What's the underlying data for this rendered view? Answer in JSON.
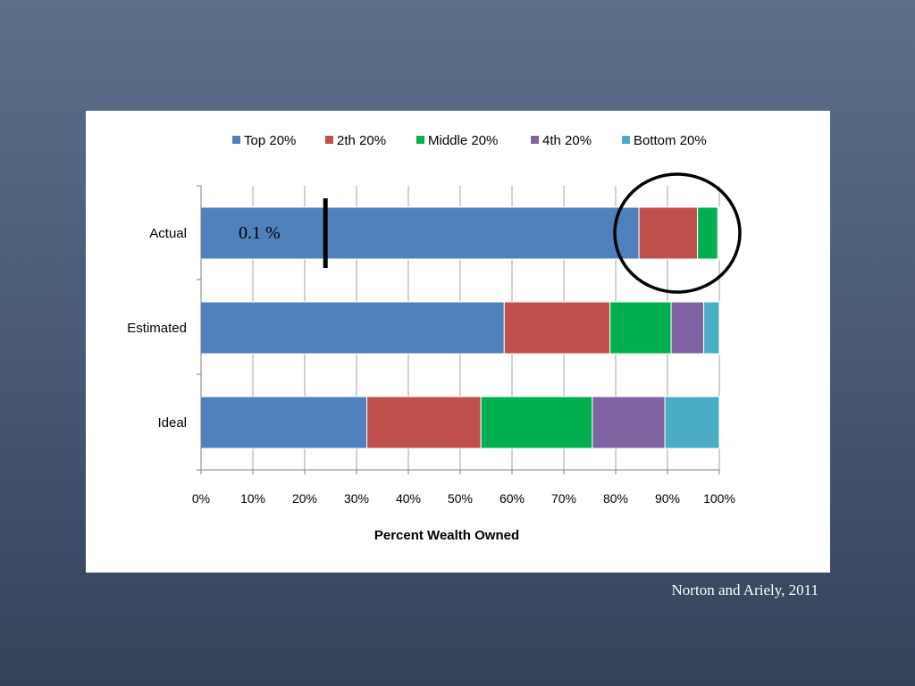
{
  "citation": "Norton and Ariely, 2011",
  "chart_data": {
    "type": "bar",
    "orientation": "horizontal",
    "stacked": true,
    "categories": [
      "Actual",
      "Estimated",
      "Ideal"
    ],
    "series": [
      {
        "name": "Top 20%",
        "color": "#4f81bd",
        "values": [
          84.5,
          58.5,
          32.0
        ]
      },
      {
        "name": "2th 20%",
        "color": "#c0504d",
        "values": [
          11.3,
          20.4,
          22.0
        ]
      },
      {
        "name": "Middle 20%",
        "color": "#00b050",
        "values": [
          3.9,
          11.8,
          21.5
        ]
      },
      {
        "name": "4th 20%",
        "color": "#8064a2",
        "values": [
          0.2,
          6.3,
          14.0
        ]
      },
      {
        "name": "Bottom 20%",
        "color": "#4bacc6",
        "values": [
          0.1,
          3.0,
          10.5
        ]
      }
    ],
    "xlabel": "Percent Wealth Owned",
    "ylabel": "",
    "xlim": [
      0,
      100
    ],
    "xticks": [
      "0%",
      "10%",
      "20%",
      "30%",
      "40%",
      "50%",
      "60%",
      "70%",
      "80%",
      "90%",
      "100%"
    ],
    "grid": true,
    "legend_position": "top",
    "annotations": {
      "marker_label": "0.1 %",
      "marker_value": 24,
      "marker_category": "Actual",
      "circle_category": "Actual",
      "circle_range": [
        80,
        100
      ]
    }
  }
}
